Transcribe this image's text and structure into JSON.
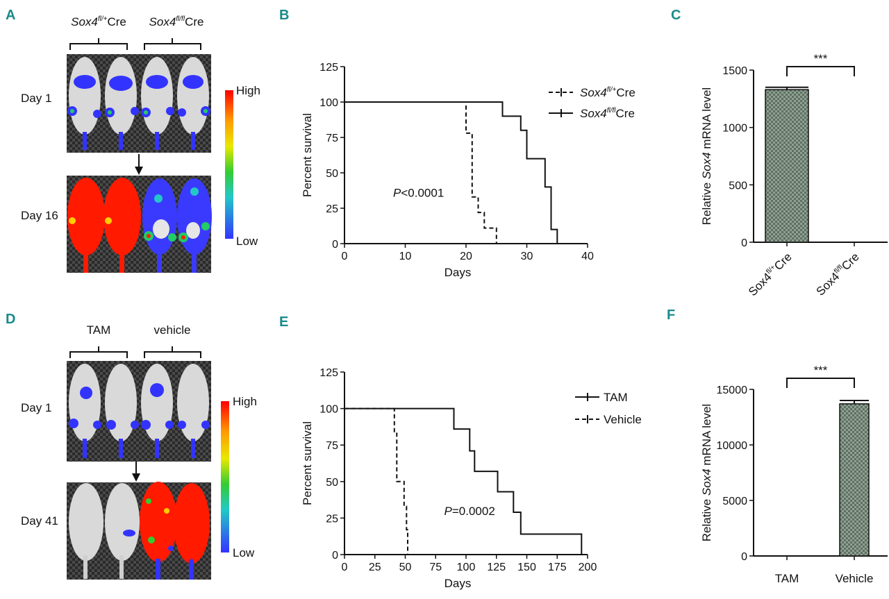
{
  "panels": {
    "A": {
      "letter": "A",
      "groups": [
        {
          "gene": "Sox4",
          "sup": "fl/+",
          "suffix": "Cre"
        },
        {
          "gene": "Sox4",
          "sup": "fl/fl",
          "suffix": "Cre"
        }
      ],
      "rows": [
        "Day 1",
        "Day 16"
      ],
      "scale": {
        "high": "High",
        "low": "Low"
      }
    },
    "D": {
      "letter": "D",
      "groups": [
        {
          "label": "TAM"
        },
        {
          "label": "vehicle"
        }
      ],
      "rows": [
        "Day 1",
        "Day 41"
      ],
      "scale": {
        "high": "High",
        "low": "Low"
      }
    },
    "B": {
      "letter": "B"
    },
    "C": {
      "letter": "C"
    },
    "E": {
      "letter": "E"
    },
    "F": {
      "letter": "F"
    }
  },
  "chart_data": [
    {
      "panel": "B",
      "type": "line",
      "subtype": "survival-step",
      "xlabel": "Days",
      "ylabel": "Percent survival",
      "xlim": [
        0,
        40
      ],
      "ylim": [
        0,
        125
      ],
      "xticks": [
        0,
        10,
        20,
        30,
        40
      ],
      "yticks": [
        0,
        25,
        50,
        75,
        100,
        125
      ],
      "annotation": {
        "italic": "P",
        "rest": "<0.0001",
        "x": 8,
        "y": 33
      },
      "series": [
        {
          "name": "Sox4fl/+Cre",
          "gene": "Sox4",
          "sup": "fl/+",
          "suffix": "Cre",
          "dash": true,
          "x": [
            0,
            20,
            20,
            21,
            21,
            22,
            22,
            23,
            23,
            25,
            25
          ],
          "y": [
            100,
            100,
            78,
            78,
            33,
            33,
            22,
            22,
            11,
            11,
            0
          ]
        },
        {
          "name": "Sox4fl/flCre",
          "gene": "Sox4",
          "sup": "fl/fl",
          "suffix": "Cre",
          "dash": false,
          "x": [
            0,
            26,
            26,
            29,
            29,
            30,
            30,
            33,
            33,
            34,
            34,
            35,
            35
          ],
          "y": [
            100,
            100,
            90,
            90,
            80,
            80,
            60,
            60,
            40,
            40,
            10,
            10,
            0
          ]
        }
      ]
    },
    {
      "panel": "C",
      "type": "bar",
      "ylabel_parts": [
        "Relative ",
        "Sox4",
        " mRNA level"
      ],
      "ylim": [
        0,
        1500
      ],
      "yticks": [
        0,
        500,
        1000,
        1500
      ],
      "categories": [
        {
          "gene": "Sox4",
          "sup": "fl/+",
          "suffix": "Cre"
        },
        {
          "gene": "Sox4",
          "sup": "fl/fl",
          "suffix": "Cre"
        }
      ],
      "values": [
        1330,
        0
      ],
      "errors": [
        20,
        0
      ],
      "significance": "***"
    },
    {
      "panel": "E",
      "type": "line",
      "subtype": "survival-step",
      "xlabel": "Days",
      "ylabel": "Percent survival",
      "xlim": [
        0,
        200
      ],
      "ylim": [
        0,
        125
      ],
      "xticks": [
        0,
        25,
        50,
        75,
        100,
        125,
        150,
        175,
        200
      ],
      "yticks": [
        0,
        25,
        50,
        75,
        100,
        125
      ],
      "annotation": {
        "italic": "P",
        "rest": "=0.0002",
        "x": 82,
        "y": 27
      },
      "series": [
        {
          "name": "TAM",
          "dash": false,
          "x": [
            0,
            90,
            90,
            103,
            103,
            107,
            107,
            126,
            126,
            139,
            139,
            145,
            145,
            195,
            195
          ],
          "y": [
            100,
            100,
            86,
            86,
            71,
            71,
            57,
            57,
            43,
            43,
            29,
            29,
            14,
            14,
            0
          ]
        },
        {
          "name": "Vehicle",
          "dash": true,
          "x": [
            0,
            41,
            41,
            43,
            43,
            49,
            49,
            51,
            51,
            52,
            52
          ],
          "y": [
            100,
            100,
            83,
            83,
            50,
            50,
            33,
            33,
            17,
            17,
            0
          ]
        }
      ]
    },
    {
      "panel": "F",
      "type": "bar",
      "ylabel_parts": [
        "Relative ",
        "Sox4",
        " mRNA level"
      ],
      "ylim": [
        0,
        15000
      ],
      "yticks": [
        0,
        5000,
        10000,
        15000
      ],
      "categories": [
        {
          "label": "TAM"
        },
        {
          "label": "Vehicle"
        }
      ],
      "values": [
        0,
        13700
      ],
      "errors": [
        0,
        300
      ],
      "significance": "***"
    }
  ]
}
